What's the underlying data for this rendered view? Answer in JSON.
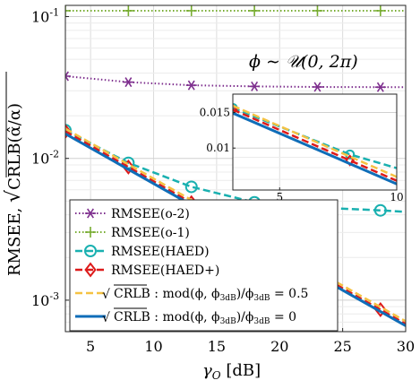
{
  "chart_data": {
    "type": "line",
    "xlabel": "γO [dB]",
    "ylabel": "RMSEE, √CRLB(α̂/α)",
    "annotation": "ϕ ∼ 𝒰(0, 2π)",
    "x_range": [
      3,
      30
    ],
    "y_range": [
      0.0006,
      0.12
    ],
    "y_scale": "log",
    "grid": true,
    "legend_position": "bottom-left",
    "x_ticks": [
      "5",
      "10",
      "15",
      "20",
      "25",
      "30"
    ],
    "y_ticks": [
      {
        "value": 0.1,
        "base": "10",
        "exp": "-1"
      },
      {
        "value": 0.01,
        "base": "10",
        "exp": "-2"
      },
      {
        "value": 0.001,
        "base": "10",
        "exp": "-3"
      }
    ],
    "series": [
      {
        "name": "RMSEE(o-2)",
        "color": "#7e2f8e",
        "line": "dotted",
        "marker": "asterisk",
        "x": [
          3,
          8,
          13,
          18,
          23,
          28,
          30
        ],
        "y": [
          0.038,
          0.0345,
          0.0328,
          0.0322,
          0.0319,
          0.0318,
          0.0318
        ],
        "marker_x": [
          3,
          8,
          13,
          18,
          23,
          28
        ]
      },
      {
        "name": "RMSEE(o-1)",
        "color": "#77ac30",
        "line": "dotted",
        "marker": "plus",
        "x": [
          3,
          30
        ],
        "y": [
          0.11,
          0.11
        ],
        "marker_x": [
          3,
          8,
          13,
          18,
          23,
          28
        ]
      },
      {
        "name": "RMSEE(HAED)",
        "color": "#19b0b0",
        "line": "dashed",
        "marker": "circle",
        "x": [
          3,
          8,
          13,
          18,
          23,
          28,
          30
        ],
        "y": [
          0.0158,
          0.0093,
          0.0063,
          0.0049,
          0.0045,
          0.0043,
          0.0042
        ],
        "marker_x": [
          3,
          8,
          13,
          18,
          23,
          28
        ]
      },
      {
        "name": "RMSEE(HAED+)",
        "color": "#dd1a1a",
        "line": "dashed",
        "marker": "diamond",
        "x": [
          3,
          30
        ],
        "y": [
          0.0155,
          0.00068
        ],
        "marker_x": [
          3,
          8,
          13,
          18,
          23,
          28
        ]
      },
      {
        "name": "√CRLB : mod(ϕ, ϕ3dB)/ϕ3dB = 0.5",
        "color": "#f5c242",
        "line": "dashed",
        "marker": "none",
        "x": [
          3,
          30
        ],
        "y": [
          0.0162,
          0.00071
        ]
      },
      {
        "name": "√CRLB : mod(ϕ, ϕ3dB)/ϕ3dB = 0",
        "color": "#0f6db8",
        "line": "solid",
        "marker": "none",
        "x": [
          3,
          30
        ],
        "y": [
          0.0149,
          0.00066
        ]
      }
    ],
    "inset": {
      "x_range": [
        3,
        10
      ],
      "y_range": [
        0.0062,
        0.0185
      ],
      "y_scale": "log",
      "x_ticks": [
        "5",
        "10"
      ],
      "y_ticks": [
        "0.01",
        "0.015"
      ]
    }
  },
  "legend": {
    "o2": "RMSEE(o-2)",
    "o1": "RMSEE(o-1)",
    "haed": "RMSEE(HAED)",
    "haedp": "RMSEE(HAED+)",
    "crlb_half_rest": " : mod(ϕ, ϕ",
    "crlb_half_tail": ")/ϕ",
    "crlb_half_val": " = 0.5",
    "crlb_zero_val": " = 0",
    "crlb": "CRLB",
    "sub3db": "3dB"
  },
  "labels": {
    "ylabel_main": "RMSEE, ",
    "ylabel_crlb": "CRLB(α̂/α)",
    "xlabel_gamma": "γ",
    "xlabel_sub": "O",
    "xlabel_unit": " [dB]",
    "ann_phi": "ϕ ∼ 𝒰(0, 2π)"
  }
}
